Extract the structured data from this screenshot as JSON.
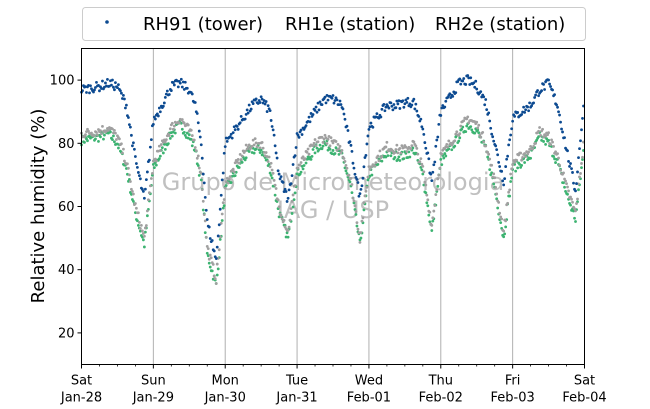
{
  "chart_data": {
    "type": "scatter",
    "title": "",
    "xlabel": "",
    "ylabel": "Relative humidity (%)",
    "ylim": [
      10,
      110
    ],
    "yticks": [
      20,
      40,
      60,
      80,
      100
    ],
    "xlim": [
      "2017-01-28",
      "2017-02-04"
    ],
    "xticks": [
      {
        "date": "2017-01-28",
        "day": "Sat",
        "label": "Jan-28"
      },
      {
        "date": "2017-01-29",
        "day": "Sun",
        "label": "Jan-29"
      },
      {
        "date": "2017-01-30",
        "day": "Mon",
        "label": "Jan-30"
      },
      {
        "date": "2017-01-31",
        "day": "Tue",
        "label": "Jan-31"
      },
      {
        "date": "2017-02-01",
        "day": "Wed",
        "label": "Feb-01"
      },
      {
        "date": "2017-02-02",
        "day": "Thu",
        "label": "Feb-02"
      },
      {
        "date": "2017-02-03",
        "day": "Fri",
        "label": "Feb-03"
      },
      {
        "date": "2017-02-04",
        "day": "Sat",
        "label": "Feb-04"
      }
    ],
    "grid": "vertical at day ticks",
    "legend_position": "top",
    "watermark": [
      "Grupo de Micrometeorologia",
      "IAG / USP"
    ],
    "series": [
      {
        "name": "RH91 (tower)",
        "color": "#0c4a91",
        "x": [
          "2017-01-28 00:00",
          "2017-01-28 06:00",
          "2017-01-28 09:00",
          "2017-01-28 12:00",
          "2017-01-28 15:00",
          "2017-01-28 18:00",
          "2017-01-28 21:00",
          "2017-01-29 00:00",
          "2017-01-29 06:00",
          "2017-01-29 09:00",
          "2017-01-29 12:00",
          "2017-01-29 14:00",
          "2017-01-29 16:00",
          "2017-01-29 18:00",
          "2017-01-29 21:00",
          "2017-01-30 00:00",
          "2017-01-30 06:00",
          "2017-01-30 09:00",
          "2017-01-30 12:00",
          "2017-01-30 15:00",
          "2017-01-30 18:00",
          "2017-01-30 21:00",
          "2017-01-31 00:00",
          "2017-01-31 06:00",
          "2017-01-31 09:00",
          "2017-01-31 12:00",
          "2017-01-31 15:00",
          "2017-01-31 18:00",
          "2017-01-31 21:00",
          "2017-02-01 00:00",
          "2017-02-01 06:00",
          "2017-02-01 09:00",
          "2017-02-01 12:00",
          "2017-02-01 15:00",
          "2017-02-01 18:00",
          "2017-02-01 21:00",
          "2017-02-02 00:00",
          "2017-02-02 06:00",
          "2017-02-02 09:00",
          "2017-02-02 12:00",
          "2017-02-02 15:00",
          "2017-02-02 18:00",
          "2017-02-02 21:00",
          "2017-02-03 00:00",
          "2017-02-03 06:00",
          "2017-02-03 09:00",
          "2017-02-03 12:00",
          "2017-02-03 15:00",
          "2017-02-03 18:00",
          "2017-02-03 21:00",
          "2017-02-04 00:00"
        ],
        "y": [
          97,
          98,
          99,
          98,
          92,
          75,
          62,
          87,
          98,
          99,
          97,
          92,
          80,
          55,
          43,
          80,
          88,
          92,
          94,
          90,
          70,
          62,
          82,
          90,
          94,
          94,
          92,
          78,
          63,
          85,
          92,
          92,
          93,
          93,
          85,
          68,
          90,
          99,
          100,
          98,
          93,
          80,
          68,
          88,
          92,
          97,
          99,
          92,
          78,
          65,
          95
        ]
      },
      {
        "name": "RH1e (station)",
        "color": "#3cb371",
        "x": [
          "2017-01-28 00:00",
          "2017-01-28 06:00",
          "2017-01-28 09:00",
          "2017-01-28 12:00",
          "2017-01-28 15:00",
          "2017-01-28 18:00",
          "2017-01-28 21:00",
          "2017-01-29 00:00",
          "2017-01-29 06:00",
          "2017-01-29 09:00",
          "2017-01-29 12:00",
          "2017-01-29 14:00",
          "2017-01-29 16:00",
          "2017-01-29 18:00",
          "2017-01-29 21:00",
          "2017-01-30 00:00",
          "2017-01-30 06:00",
          "2017-01-30 09:00",
          "2017-01-30 12:00",
          "2017-01-30 15:00",
          "2017-01-30 18:00",
          "2017-01-30 21:00",
          "2017-01-31 00:00",
          "2017-01-31 06:00",
          "2017-01-31 09:00",
          "2017-01-31 12:00",
          "2017-01-31 15:00",
          "2017-01-31 18:00",
          "2017-01-31 21:00",
          "2017-02-01 00:00",
          "2017-02-01 06:00",
          "2017-02-01 09:00",
          "2017-02-01 12:00",
          "2017-02-01 15:00",
          "2017-02-01 18:00",
          "2017-02-01 21:00",
          "2017-02-02 00:00",
          "2017-02-02 06:00",
          "2017-02-02 09:00",
          "2017-02-02 12:00",
          "2017-02-02 15:00",
          "2017-02-02 18:00",
          "2017-02-02 21:00",
          "2017-02-03 00:00",
          "2017-02-03 06:00",
          "2017-02-03 09:00",
          "2017-02-03 12:00",
          "2017-02-03 15:00",
          "2017-02-03 18:00",
          "2017-02-03 21:00",
          "2017-02-04 00:00"
        ],
        "y": [
          81,
          82,
          83,
          80,
          72,
          58,
          48,
          72,
          83,
          86,
          82,
          78,
          68,
          45,
          35,
          65,
          75,
          78,
          78,
          72,
          58,
          50,
          70,
          78,
          80,
          78,
          76,
          66,
          48,
          70,
          77,
          76,
          76,
          78,
          70,
          52,
          74,
          82,
          86,
          84,
          78,
          66,
          50,
          72,
          76,
          82,
          80,
          74,
          64,
          56,
          80
        ]
      },
      {
        "name": "RH2e (station)",
        "color": "#a0a0a0",
        "x": [
          "2017-01-28 00:00",
          "2017-01-28 06:00",
          "2017-01-28 09:00",
          "2017-01-28 12:00",
          "2017-01-28 15:00",
          "2017-01-28 18:00",
          "2017-01-28 21:00",
          "2017-01-29 00:00",
          "2017-01-29 06:00",
          "2017-01-29 09:00",
          "2017-01-29 12:00",
          "2017-01-29 14:00",
          "2017-01-29 16:00",
          "2017-01-29 18:00",
          "2017-01-29 21:00",
          "2017-01-30 00:00",
          "2017-01-30 06:00",
          "2017-01-30 09:00",
          "2017-01-30 12:00",
          "2017-01-30 15:00",
          "2017-01-30 18:00",
          "2017-01-30 21:00",
          "2017-01-31 00:00",
          "2017-01-31 06:00",
          "2017-01-31 09:00",
          "2017-01-31 12:00",
          "2017-01-31 15:00",
          "2017-01-31 18:00",
          "2017-01-31 21:00",
          "2017-02-01 00:00",
          "2017-02-01 06:00",
          "2017-02-01 09:00",
          "2017-02-01 12:00",
          "2017-02-01 15:00",
          "2017-02-01 18:00",
          "2017-02-01 21:00",
          "2017-02-02 00:00",
          "2017-02-02 06:00",
          "2017-02-02 09:00",
          "2017-02-02 12:00",
          "2017-02-02 15:00",
          "2017-02-02 18:00",
          "2017-02-02 21:00",
          "2017-02-03 00:00",
          "2017-02-03 06:00",
          "2017-02-03 09:00",
          "2017-02-03 12:00",
          "2017-02-03 15:00",
          "2017-02-03 18:00",
          "2017-02-03 21:00",
          "2017-02-04 00:00"
        ],
        "y": [
          83,
          84,
          85,
          82,
          74,
          60,
          50,
          74,
          85,
          88,
          84,
          80,
          70,
          47,
          37,
          67,
          77,
          80,
          80,
          74,
          60,
          52,
          72,
          80,
          82,
          80,
          78,
          68,
          50,
          72,
          79,
          78,
          78,
          80,
          72,
          54,
          76,
          84,
          88,
          86,
          80,
          68,
          52,
          74,
          78,
          84,
          82,
          76,
          66,
          58,
          82
        ]
      }
    ]
  }
}
